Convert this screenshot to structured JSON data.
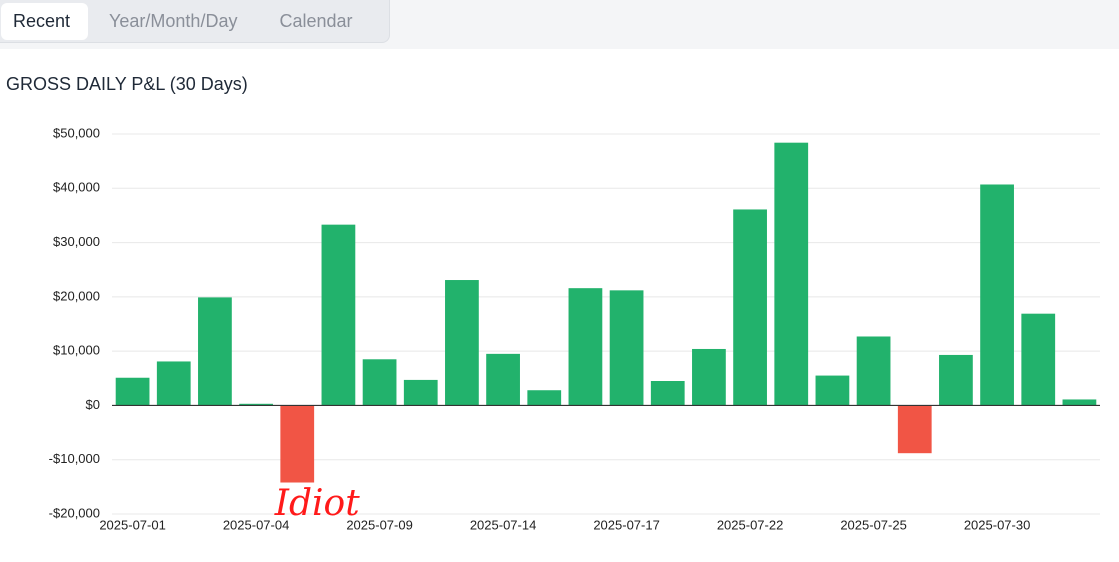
{
  "tabs": [
    "Recent",
    "Year/Month/Day",
    "Calendar"
  ],
  "active_tab": 0,
  "chart_data": {
    "type": "bar",
    "title": "GROSS DAILY P&L (30 Days)",
    "categories": [
      "2025-07-01",
      null,
      null,
      "2025-07-04",
      null,
      null,
      "2025-07-09",
      null,
      null,
      "2025-07-14",
      null,
      null,
      "2025-07-17",
      null,
      null,
      "2025-07-22",
      null,
      null,
      "2025-07-25",
      null,
      null,
      "2025-07-30",
      null,
      null
    ],
    "values": [
      5100,
      8100,
      19900,
      300,
      -14200,
      33300,
      8500,
      4700,
      23100,
      9500,
      2800,
      21600,
      21200,
      4500,
      10400,
      36100,
      48400,
      5500,
      12700,
      -8800,
      9300,
      40700,
      16900,
      1100
    ],
    "positive_color": "#22b26c",
    "negative_color": "#f15545",
    "ylim": [
      -20000,
      50000
    ],
    "yticks": [
      {
        "value": -20000,
        "label": "-$20,000"
      },
      {
        "value": -10000,
        "label": "-$10,000"
      },
      {
        "value": 0,
        "label": "$0"
      },
      {
        "value": 10000,
        "label": "$10,000"
      },
      {
        "value": 20000,
        "label": "$20,000"
      },
      {
        "value": 30000,
        "label": "$30,000"
      },
      {
        "value": 40000,
        "label": "$40,000"
      },
      {
        "value": 50000,
        "label": "$50,000"
      }
    ],
    "grid": true,
    "annotation": {
      "text": "Idiot",
      "index": 4,
      "color": "#ff1a1a"
    }
  }
}
